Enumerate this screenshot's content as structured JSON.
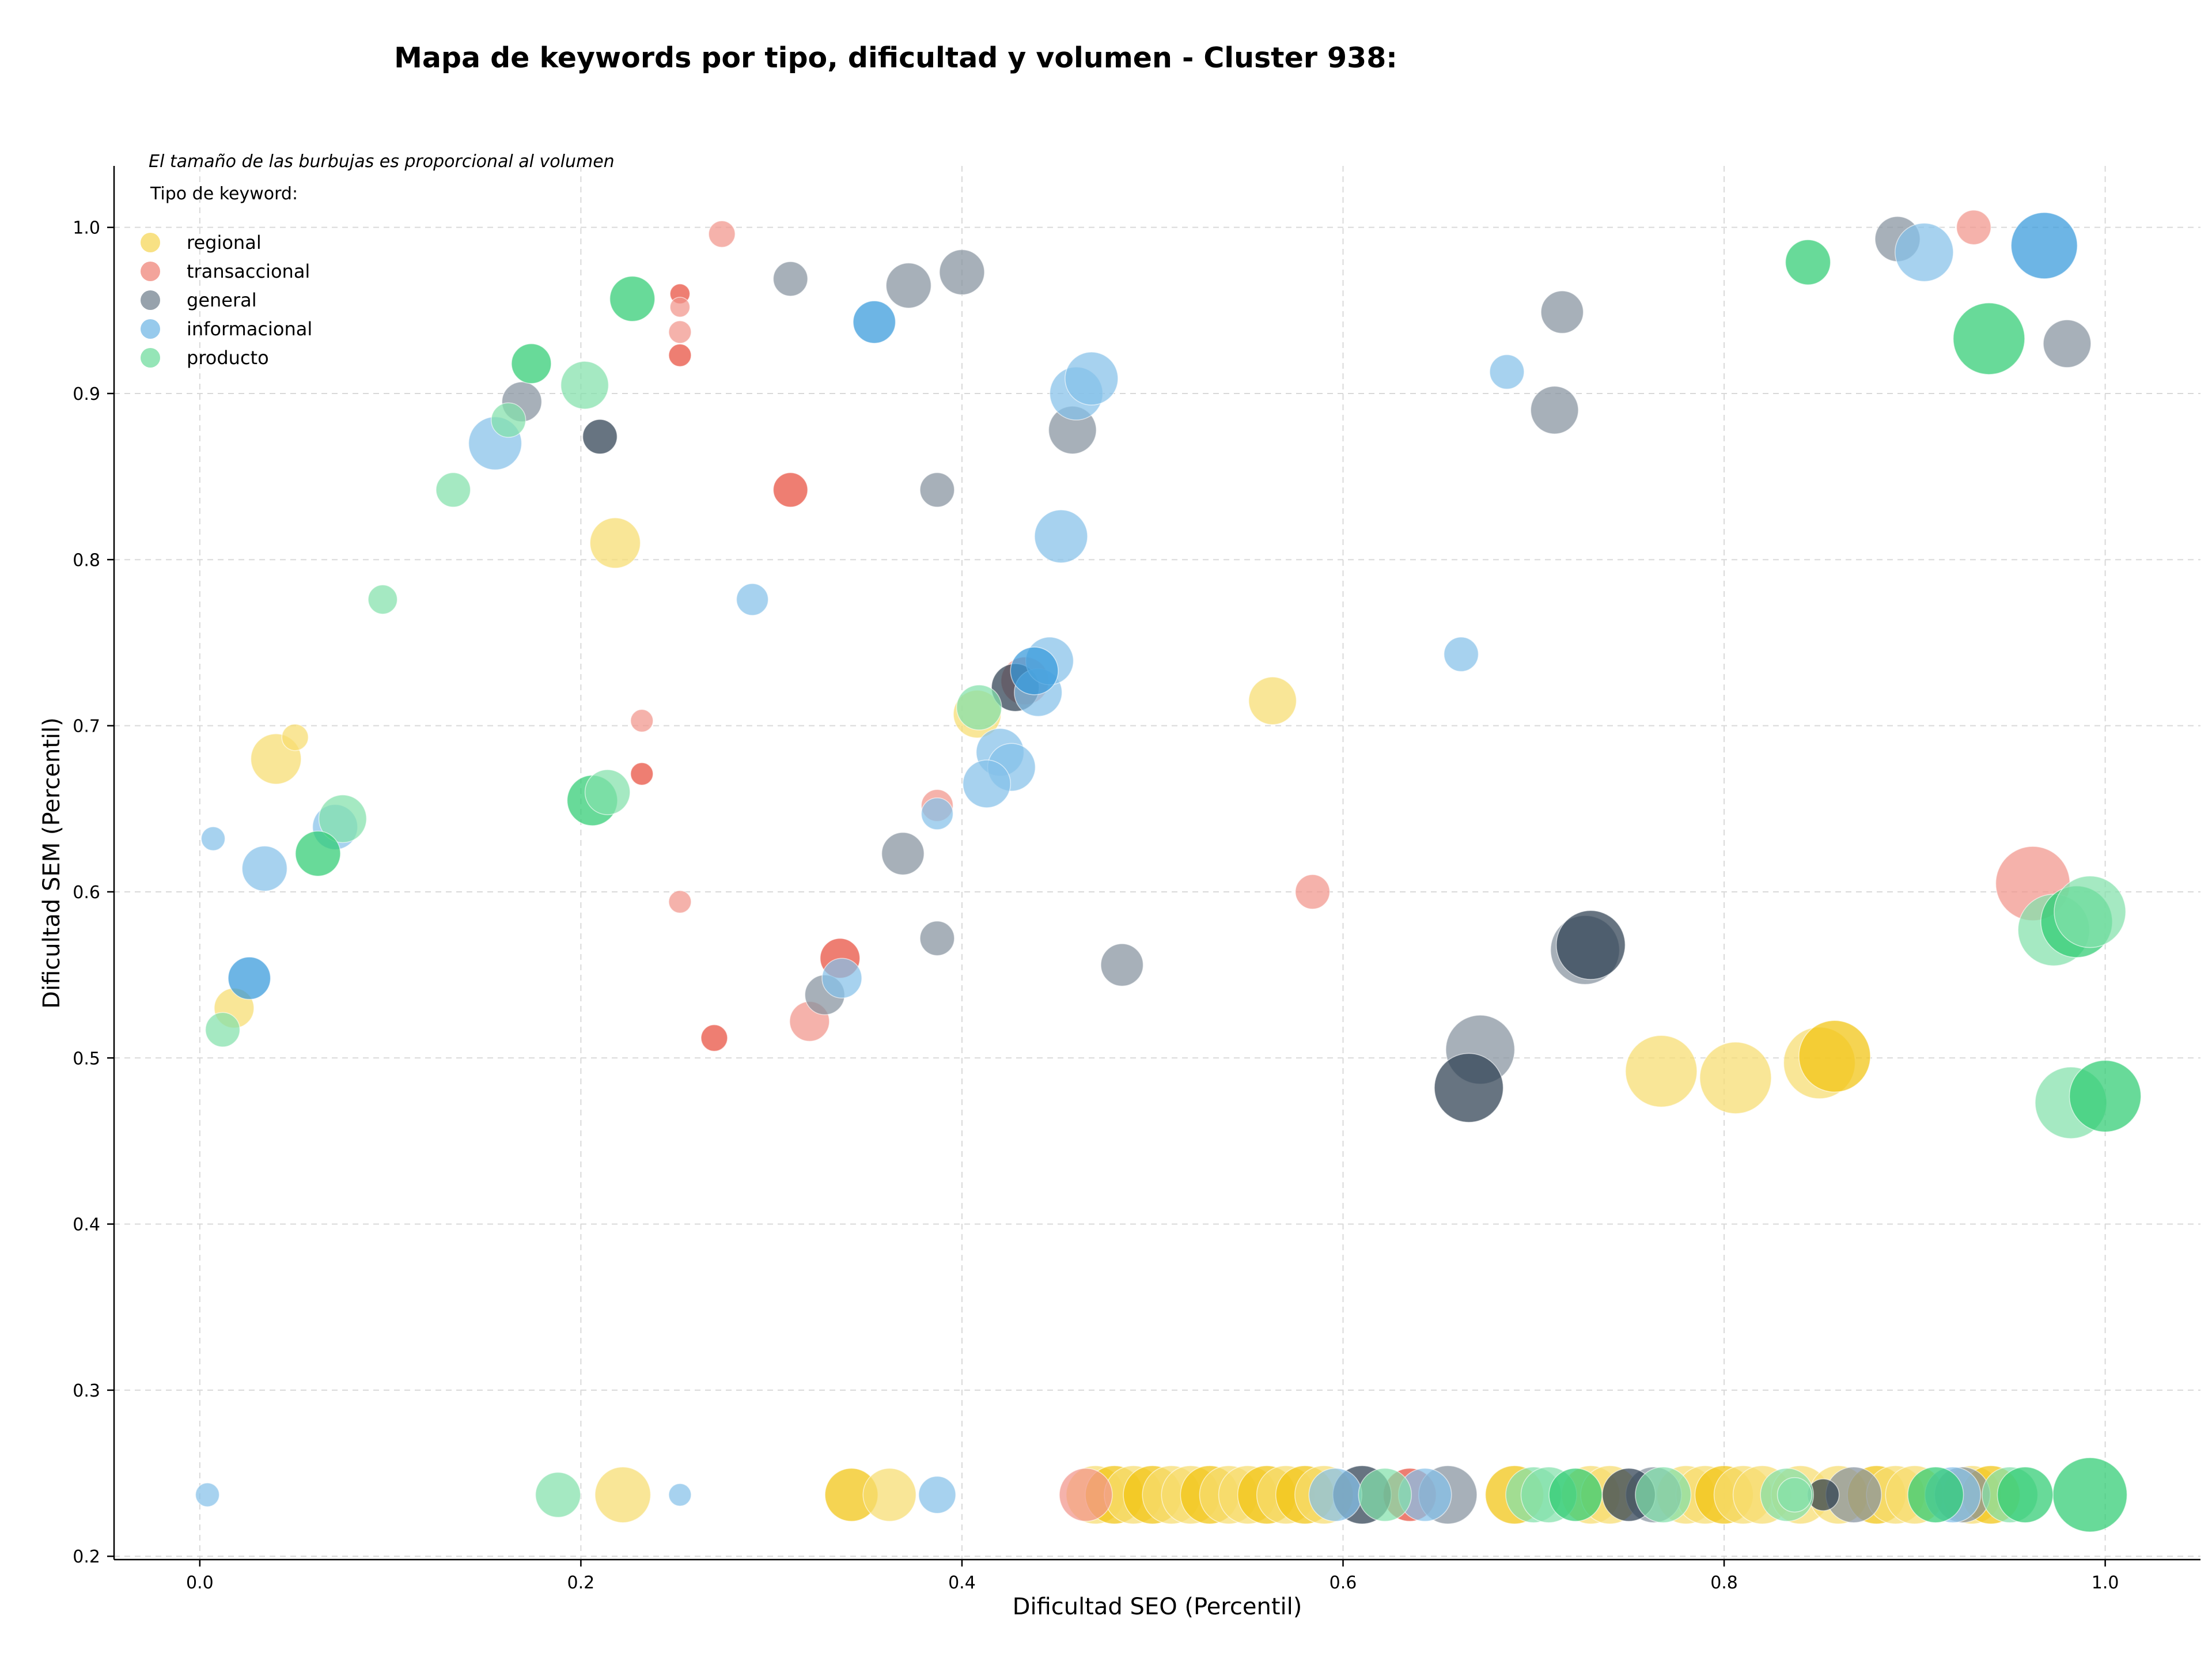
{
  "chart_data": {
    "type": "scatter",
    "title": "Mapa de keywords por tipo, dificultad y volumen - Cluster 938:",
    "xlabel": "Dificultad SEO (Percentil)",
    "ylabel": "Dificultad SEM (Percentil)",
    "xlim": [
      -0.045,
      1.05
    ],
    "ylim": [
      0.198,
      1.037
    ],
    "xticks": [
      "0.0",
      "0.2",
      "0.4",
      "0.6",
      "0.8",
      "1.0"
    ],
    "yticks": [
      "0.2",
      "0.3",
      "0.4",
      "0.5",
      "0.6",
      "0.7",
      "0.8",
      "0.9",
      "1.0"
    ],
    "grid": true,
    "note": "El tamaño de las burbujas es proporcional al volumen",
    "legend": {
      "title": "Tipo de keyword:",
      "position": "top-left",
      "entries": [
        "regional",
        "transaccional",
        "general",
        "informacional",
        "producto"
      ]
    },
    "series": [
      {
        "name": "regional",
        "color": "#f1c40f",
        "light": "#f7dc6f",
        "points": [
          [
            0.018,
            0.53,
            30
          ],
          [
            0.04,
            0.68,
            38
          ],
          [
            0.05,
            0.693,
            20
          ],
          [
            0.218,
            0.81,
            38
          ],
          [
            0.408,
            0.707,
            36
          ],
          [
            0.563,
            0.715,
            36
          ],
          [
            0.767,
            0.492,
            54
          ],
          [
            0.806,
            0.488,
            54
          ],
          [
            0.85,
            0.497,
            54
          ],
          [
            0.858,
            0.501,
            54
          ],
          [
            0.222,
            0.237,
            42
          ],
          [
            0.342,
            0.237,
            40
          ],
          [
            0.362,
            0.237,
            40
          ],
          [
            0.47,
            0.237,
            44
          ],
          [
            0.48,
            0.237,
            44
          ],
          [
            0.49,
            0.237,
            44
          ],
          [
            0.5,
            0.237,
            44
          ],
          [
            0.51,
            0.237,
            44
          ],
          [
            0.52,
            0.237,
            44
          ],
          [
            0.53,
            0.237,
            44
          ],
          [
            0.54,
            0.237,
            44
          ],
          [
            0.55,
            0.237,
            44
          ],
          [
            0.56,
            0.237,
            44
          ],
          [
            0.57,
            0.237,
            44
          ],
          [
            0.58,
            0.237,
            44
          ],
          [
            0.59,
            0.237,
            44
          ],
          [
            0.69,
            0.237,
            44
          ],
          [
            0.73,
            0.237,
            44
          ],
          [
            0.74,
            0.237,
            44
          ],
          [
            0.78,
            0.237,
            44
          ],
          [
            0.79,
            0.237,
            44
          ],
          [
            0.8,
            0.237,
            44
          ],
          [
            0.81,
            0.237,
            44
          ],
          [
            0.82,
            0.237,
            44
          ],
          [
            0.84,
            0.237,
            44
          ],
          [
            0.86,
            0.237,
            44
          ],
          [
            0.88,
            0.237,
            44
          ],
          [
            0.89,
            0.237,
            44
          ],
          [
            0.9,
            0.237,
            44
          ],
          [
            0.93,
            0.237,
            44
          ],
          [
            0.94,
            0.237,
            44
          ]
        ]
      },
      {
        "name": "transaccional",
        "color": "#e74c3c",
        "light": "#f1948a",
        "points": [
          [
            0.274,
            0.996,
            20
          ],
          [
            0.252,
            0.96,
            15
          ],
          [
            0.252,
            0.952,
            15
          ],
          [
            0.252,
            0.937,
            17
          ],
          [
            0.252,
            0.923,
            17
          ],
          [
            0.31,
            0.842,
            26
          ],
          [
            0.232,
            0.703,
            17
          ],
          [
            0.232,
            0.671,
            17
          ],
          [
            0.387,
            0.652,
            24
          ],
          [
            0.252,
            0.594,
            17
          ],
          [
            0.336,
            0.56,
            30
          ],
          [
            0.27,
            0.512,
            20
          ],
          [
            0.32,
            0.522,
            30
          ],
          [
            0.433,
            0.727,
            36
          ],
          [
            0.584,
            0.6,
            26
          ],
          [
            0.931,
            1.0,
            26
          ],
          [
            0.962,
            0.605,
            56
          ],
          [
            0.465,
            0.237,
            40
          ],
          [
            0.635,
            0.237,
            40
          ]
        ]
      },
      {
        "name": "general",
        "color": "#2c3e50",
        "light": "#85929e",
        "points": [
          [
            0.31,
            0.969,
            26
          ],
          [
            0.372,
            0.965,
            34
          ],
          [
            0.4,
            0.973,
            34
          ],
          [
            0.169,
            0.895,
            30
          ],
          [
            0.21,
            0.874,
            26
          ],
          [
            0.387,
            0.842,
            26
          ],
          [
            0.458,
            0.878,
            36
          ],
          [
            0.369,
            0.623,
            32
          ],
          [
            0.387,
            0.572,
            26
          ],
          [
            0.484,
            0.556,
            32
          ],
          [
            0.328,
            0.538,
            30
          ],
          [
            0.428,
            0.723,
            36
          ],
          [
            0.715,
            0.949,
            32
          ],
          [
            0.711,
            0.89,
            36
          ],
          [
            0.891,
            0.993,
            34
          ],
          [
            0.98,
            0.93,
            36
          ],
          [
            0.672,
            0.505,
            52
          ],
          [
            0.666,
            0.482,
            52
          ],
          [
            0.727,
            0.565,
            52
          ],
          [
            0.73,
            0.568,
            52
          ],
          [
            0.61,
            0.237,
            44
          ],
          [
            0.655,
            0.237,
            44
          ],
          [
            0.75,
            0.237,
            40
          ],
          [
            0.763,
            0.237,
            42
          ],
          [
            0.852,
            0.237,
            24
          ],
          [
            0.868,
            0.237,
            42
          ],
          [
            0.925,
            0.237,
            42
          ]
        ]
      },
      {
        "name": "informacional",
        "color": "#3498db",
        "light": "#85c1e9",
        "points": [
          [
            0.007,
            0.632,
            18
          ],
          [
            0.034,
            0.614,
            34
          ],
          [
            0.026,
            0.548,
            32
          ],
          [
            0.071,
            0.639,
            34
          ],
          [
            0.155,
            0.87,
            40
          ],
          [
            0.354,
            0.943,
            32
          ],
          [
            0.29,
            0.776,
            24
          ],
          [
            0.337,
            0.548,
            30
          ],
          [
            0.387,
            0.647,
            24
          ],
          [
            0.452,
            0.814,
            40
          ],
          [
            0.46,
            0.9,
            40
          ],
          [
            0.468,
            0.909,
            40
          ],
          [
            0.44,
            0.72,
            36
          ],
          [
            0.446,
            0.739,
            36
          ],
          [
            0.438,
            0.733,
            36
          ],
          [
            0.42,
            0.684,
            36
          ],
          [
            0.426,
            0.675,
            36
          ],
          [
            0.413,
            0.665,
            36
          ],
          [
            0.662,
            0.743,
            26
          ],
          [
            0.686,
            0.913,
            26
          ],
          [
            0.905,
            0.985,
            44
          ],
          [
            0.968,
            0.989,
            50
          ],
          [
            0.004,
            0.237,
            18
          ],
          [
            0.252,
            0.237,
            17
          ],
          [
            0.387,
            0.237,
            28
          ],
          [
            0.596,
            0.237,
            40
          ],
          [
            0.643,
            0.237,
            40
          ],
          [
            0.92,
            0.237,
            42
          ]
        ]
      },
      {
        "name": "producto",
        "color": "#2ecc71",
        "light": "#82e0aa",
        "points": [
          [
            0.012,
            0.517,
            26
          ],
          [
            0.062,
            0.623,
            34
          ],
          [
            0.075,
            0.644,
            36
          ],
          [
            0.096,
            0.776,
            22
          ],
          [
            0.133,
            0.842,
            26
          ],
          [
            0.162,
            0.884,
            26
          ],
          [
            0.174,
            0.918,
            30
          ],
          [
            0.202,
            0.905,
            36
          ],
          [
            0.227,
            0.957,
            34
          ],
          [
            0.206,
            0.655,
            38
          ],
          [
            0.214,
            0.66,
            34
          ],
          [
            0.409,
            0.711,
            34
          ],
          [
            0.844,
            0.979,
            34
          ],
          [
            0.939,
            0.933,
            54
          ],
          [
            0.973,
            0.577,
            54
          ],
          [
            0.985,
            0.582,
            54
          ],
          [
            0.992,
            0.588,
            54
          ],
          [
            0.982,
            0.473,
            54
          ],
          [
            1.0,
            0.477,
            54
          ],
          [
            0.188,
            0.237,
            34
          ],
          [
            0.622,
            0.237,
            40
          ],
          [
            0.7,
            0.237,
            42
          ],
          [
            0.708,
            0.237,
            42
          ],
          [
            0.722,
            0.237,
            40
          ],
          [
            0.768,
            0.237,
            42
          ],
          [
            0.833,
            0.237,
            40
          ],
          [
            0.837,
            0.237,
            26
          ],
          [
            0.911,
            0.237,
            42
          ],
          [
            0.95,
            0.237,
            42
          ],
          [
            0.958,
            0.237,
            42
          ],
          [
            0.992,
            0.237,
            56
          ]
        ]
      }
    ]
  }
}
